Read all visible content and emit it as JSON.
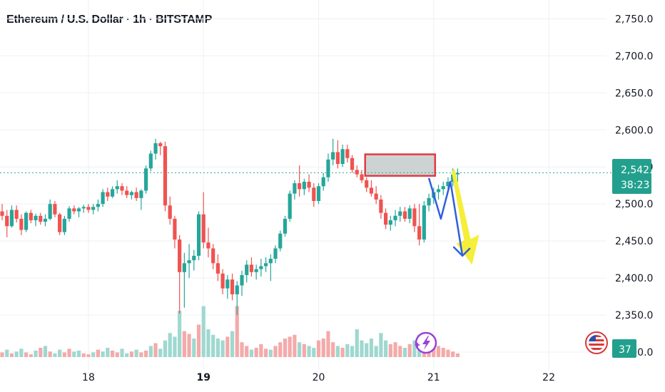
{
  "title": "Ethereum / U.S. Dollar · 1h · BITSTAMP",
  "colors": {
    "up": "#26a69a",
    "down": "#ef5350",
    "vol_up": "#9fd8d0",
    "vol_down": "#f4aaa9",
    "grid": "#eef0f3",
    "price_line": "#26a69a",
    "zone_fill": "#cdd3d3",
    "zone_border": "#e23b41",
    "arrow_blue": "#2f5fe0",
    "arrow_yellow": "#f5ee3a",
    "tag": "#22a08d"
  },
  "chart_data": {
    "type": "candlestick",
    "ylim": [
      2300,
      2760
    ],
    "yticks": [
      "2,750.0",
      "2,700.0",
      "2,650.0",
      "2,600.0",
      "2,550.0",
      "2,500.0",
      "2,450.0",
      "2,400.0",
      "2,350.0",
      "2,300.0"
    ],
    "ytick_values": [
      2750,
      2700,
      2650,
      2600,
      2550,
      2500,
      2450,
      2400,
      2350,
      2300
    ],
    "xticks": [
      {
        "label": "18",
        "bar": 18,
        "bold": false
      },
      {
        "label": "19",
        "bar": 42,
        "bold": true
      },
      {
        "label": "20",
        "bar": 66,
        "bold": false
      },
      {
        "label": "21",
        "bar": 90,
        "bold": false
      },
      {
        "label": "22",
        "bar": 114,
        "bold": false
      }
    ],
    "current_price": 2542.1,
    "price_label": "2,542.1",
    "countdown": "38:23",
    "volume_label": "37",
    "resistance_zone": {
      "bar_from": 76,
      "bar_to": 90,
      "low": 2538,
      "high": 2567
    },
    "projection_blue": [
      [
        89,
        2535
      ],
      [
        91.5,
        2480
      ],
      [
        93.5,
        2530
      ],
      [
        96,
        2430
      ],
      [
        97.5,
        2447
      ]
    ],
    "projection_yellow": [
      [
        94,
        2545
      ],
      [
        98,
        2418
      ]
    ],
    "candles": [
      [
        2490,
        2500,
        2478,
        2484
      ],
      [
        2484,
        2492,
        2455,
        2470
      ],
      [
        2470,
        2498,
        2468,
        2492
      ],
      [
        2492,
        2498,
        2475,
        2480
      ],
      [
        2480,
        2486,
        2458,
        2465
      ],
      [
        2465,
        2490,
        2462,
        2488
      ],
      [
        2488,
        2492,
        2474,
        2478
      ],
      [
        2478,
        2487,
        2470,
        2484
      ],
      [
        2484,
        2488,
        2472,
        2476
      ],
      [
        2476,
        2486,
        2470,
        2480
      ],
      [
        2480,
        2506,
        2478,
        2500
      ],
      [
        2500,
        2504,
        2482,
        2486
      ],
      [
        2486,
        2488,
        2458,
        2462
      ],
      [
        2462,
        2484,
        2458,
        2480
      ],
      [
        2480,
        2497,
        2476,
        2494
      ],
      [
        2494,
        2498,
        2486,
        2490
      ],
      [
        2490,
        2496,
        2482,
        2494
      ],
      [
        2494,
        2499,
        2488,
        2496
      ],
      [
        2496,
        2500,
        2488,
        2492
      ],
      [
        2492,
        2500,
        2486,
        2496
      ],
      [
        2496,
        2506,
        2490,
        2500
      ],
      [
        2500,
        2520,
        2496,
        2516
      ],
      [
        2516,
        2522,
        2504,
        2510
      ],
      [
        2510,
        2524,
        2508,
        2520
      ],
      [
        2520,
        2532,
        2514,
        2524
      ],
      [
        2524,
        2528,
        2512,
        2518
      ],
      [
        2518,
        2524,
        2508,
        2512
      ],
      [
        2512,
        2518,
        2506,
        2516
      ],
      [
        2516,
        2522,
        2504,
        2508
      ],
      [
        2508,
        2520,
        2492,
        2518
      ],
      [
        2518,
        2552,
        2514,
        2548
      ],
      [
        2548,
        2572,
        2544,
        2568
      ],
      [
        2568,
        2588,
        2560,
        2582
      ],
      [
        2582,
        2584,
        2566,
        2578
      ],
      [
        2578,
        2584,
        2490,
        2498
      ],
      [
        2498,
        2510,
        2472,
        2480
      ],
      [
        2480,
        2484,
        2440,
        2452
      ],
      [
        2452,
        2458,
        2352,
        2408
      ],
      [
        2408,
        2434,
        2360,
        2420
      ],
      [
        2420,
        2446,
        2400,
        2424
      ],
      [
        2424,
        2438,
        2410,
        2430
      ],
      [
        2430,
        2490,
        2424,
        2486
      ],
      [
        2486,
        2516,
        2440,
        2448
      ],
      [
        2448,
        2468,
        2428,
        2440
      ],
      [
        2440,
        2446,
        2412,
        2420
      ],
      [
        2420,
        2432,
        2396,
        2406
      ],
      [
        2406,
        2412,
        2378,
        2386
      ],
      [
        2386,
        2404,
        2372,
        2398
      ],
      [
        2398,
        2406,
        2370,
        2378
      ],
      [
        2378,
        2396,
        2350,
        2390
      ],
      [
        2390,
        2410,
        2376,
        2404
      ],
      [
        2404,
        2424,
        2394,
        2418
      ],
      [
        2418,
        2428,
        2402,
        2408
      ],
      [
        2408,
        2418,
        2398,
        2412
      ],
      [
        2412,
        2426,
        2402,
        2416
      ],
      [
        2416,
        2428,
        2408,
        2420
      ],
      [
        2420,
        2432,
        2396,
        2426
      ],
      [
        2426,
        2444,
        2420,
        2440
      ],
      [
        2440,
        2464,
        2436,
        2460
      ],
      [
        2460,
        2484,
        2456,
        2480
      ],
      [
        2480,
        2518,
        2476,
        2514
      ],
      [
        2514,
        2532,
        2506,
        2528
      ],
      [
        2528,
        2552,
        2510,
        2520
      ],
      [
        2520,
        2534,
        2512,
        2530
      ],
      [
        2530,
        2540,
        2516,
        2522
      ],
      [
        2522,
        2528,
        2496,
        2504
      ],
      [
        2504,
        2528,
        2500,
        2524
      ],
      [
        2524,
        2542,
        2518,
        2536
      ],
      [
        2536,
        2568,
        2530,
        2560
      ],
      [
        2560,
        2588,
        2552,
        2570
      ],
      [
        2570,
        2586,
        2548,
        2554
      ],
      [
        2554,
        2580,
        2550,
        2574
      ],
      [
        2574,
        2580,
        2556,
        2562
      ],
      [
        2562,
        2566,
        2542,
        2546
      ],
      [
        2546,
        2552,
        2536,
        2540
      ],
      [
        2540,
        2546,
        2528,
        2532
      ],
      [
        2532,
        2536,
        2516,
        2522
      ],
      [
        2522,
        2532,
        2510,
        2514
      ],
      [
        2514,
        2524,
        2500,
        2506
      ],
      [
        2506,
        2512,
        2480,
        2488
      ],
      [
        2488,
        2494,
        2466,
        2472
      ],
      [
        2472,
        2484,
        2464,
        2478
      ],
      [
        2478,
        2492,
        2470,
        2484
      ],
      [
        2484,
        2496,
        2476,
        2490
      ],
      [
        2490,
        2496,
        2476,
        2480
      ],
      [
        2480,
        2498,
        2474,
        2494
      ],
      [
        2494,
        2500,
        2462,
        2470
      ],
      [
        2470,
        2500,
        2444,
        2452
      ],
      [
        2452,
        2504,
        2448,
        2498
      ],
      [
        2498,
        2514,
        2490,
        2508
      ],
      [
        2508,
        2522,
        2500,
        2516
      ],
      [
        2516,
        2526,
        2506,
        2520
      ],
      [
        2520,
        2530,
        2512,
        2524
      ],
      [
        2524,
        2536,
        2518,
        2530
      ],
      [
        2530,
        2548,
        2524,
        2540
      ],
      [
        2540,
        2548,
        2530,
        2542
      ]
    ],
    "volumes": [
      [
        5,
        0
      ],
      [
        8,
        1
      ],
      [
        4,
        0
      ],
      [
        6,
        1
      ],
      [
        9,
        1
      ],
      [
        5,
        0
      ],
      [
        3,
        0
      ],
      [
        7,
        1
      ],
      [
        10,
        0
      ],
      [
        12,
        1
      ],
      [
        6,
        0
      ],
      [
        4,
        1
      ],
      [
        8,
        1
      ],
      [
        5,
        0
      ],
      [
        9,
        0
      ],
      [
        6,
        1
      ],
      [
        7,
        1
      ],
      [
        4,
        0
      ],
      [
        3,
        0
      ],
      [
        5,
        1
      ],
      [
        8,
        0
      ],
      [
        6,
        1
      ],
      [
        10,
        1
      ],
      [
        7,
        0
      ],
      [
        5,
        0
      ],
      [
        9,
        1
      ],
      [
        4,
        1
      ],
      [
        6,
        0
      ],
      [
        8,
        1
      ],
      [
        5,
        0
      ],
      [
        7,
        0
      ],
      [
        12,
        1
      ],
      [
        15,
        0
      ],
      [
        9,
        1
      ],
      [
        18,
        1
      ],
      [
        26,
        1
      ],
      [
        22,
        1
      ],
      [
        50,
        1
      ],
      [
        28,
        0
      ],
      [
        25,
        0
      ],
      [
        20,
        1
      ],
      [
        35,
        0
      ],
      [
        55,
        1
      ],
      [
        30,
        1
      ],
      [
        24,
        1
      ],
      [
        20,
        1
      ],
      [
        18,
        1
      ],
      [
        22,
        0
      ],
      [
        28,
        1
      ],
      [
        55,
        0
      ],
      [
        16,
        0
      ],
      [
        12,
        0
      ],
      [
        8,
        1
      ],
      [
        10,
        0
      ],
      [
        14,
        0
      ],
      [
        9,
        0
      ],
      [
        8,
        1
      ],
      [
        12,
        0
      ],
      [
        16,
        0
      ],
      [
        20,
        0
      ],
      [
        22,
        0
      ],
      [
        24,
        0
      ],
      [
        16,
        1
      ],
      [
        14,
        0
      ],
      [
        12,
        1
      ],
      [
        10,
        1
      ],
      [
        18,
        0
      ],
      [
        20,
        0
      ],
      [
        28,
        0
      ],
      [
        16,
        0
      ],
      [
        12,
        1
      ],
      [
        10,
        0
      ],
      [
        14,
        1
      ],
      [
        12,
        1
      ],
      [
        30,
        1
      ],
      [
        18,
        1
      ],
      [
        15,
        1
      ],
      [
        20,
        1
      ],
      [
        12,
        1
      ],
      [
        26,
        1
      ],
      [
        18,
        1
      ],
      [
        14,
        0
      ],
      [
        16,
        0
      ],
      [
        12,
        0
      ],
      [
        10,
        1
      ],
      [
        14,
        0
      ],
      [
        18,
        1
      ],
      [
        24,
        1
      ],
      [
        22,
        0
      ],
      [
        18,
        0
      ],
      [
        16,
        0
      ],
      [
        12,
        0
      ],
      [
        10,
        0
      ],
      [
        8,
        0
      ],
      [
        6,
        0
      ],
      [
        4,
        0
      ]
    ]
  },
  "icons": {
    "lightning": "lightning-badge-icon",
    "flag": "us-flag-icon"
  }
}
